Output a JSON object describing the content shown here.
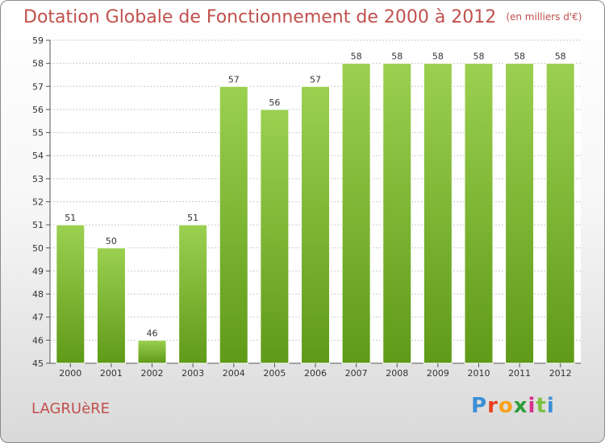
{
  "title": "Dotation Globale de Fonctionnement de 2000 à 2012",
  "unit": "(en milliers d'€)",
  "commune": "LAGRUèRE",
  "logo": [
    "P",
    "r",
    "o",
    "x",
    "i",
    "t",
    "i"
  ],
  "colors": {
    "bar_light": "#9bd050",
    "bar_dark": "#5f9a18",
    "title": "#c0504d"
  },
  "chart_data": {
    "type": "bar",
    "categories": [
      "2000",
      "2001",
      "2002",
      "2003",
      "2004",
      "2005",
      "2006",
      "2007",
      "2008",
      "2009",
      "2010",
      "2011",
      "2012"
    ],
    "values": [
      51,
      50,
      46,
      51,
      57,
      56,
      57,
      58,
      58,
      58,
      58,
      58,
      58
    ],
    "ylim": [
      45,
      59
    ],
    "yticks": [
      45,
      46,
      47,
      48,
      49,
      50,
      51,
      52,
      53,
      54,
      55,
      56,
      57,
      58,
      59
    ],
    "grid": true
  }
}
